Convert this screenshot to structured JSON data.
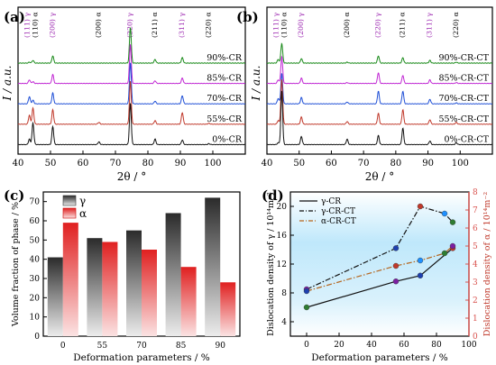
{
  "chart_data": [
    {
      "panel": "(a)",
      "type": "line",
      "xlabel": "2θ / °",
      "ylabel": "I / a.u.",
      "xlim": [
        40,
        110
      ],
      "xticks": [
        "40",
        "50",
        "60",
        "70",
        "80",
        "90",
        "100"
      ],
      "peaks": [
        {
          "label": "(111) γ",
          "x": 43.5,
          "color": "#9c27b0"
        },
        {
          "label": "(110) α",
          "x": 44.6,
          "color": "#000000"
        },
        {
          "label": "(200) γ",
          "x": 50.7,
          "color": "#9c27b0"
        },
        {
          "label": "(200) α",
          "x": 64.9,
          "color": "#000000"
        },
        {
          "label": "(220) γ",
          "x": 74.6,
          "color": "#9c27b0"
        },
        {
          "label": "(211) α",
          "x": 82.2,
          "color": "#000000"
        },
        {
          "label": "(311) γ",
          "x": 90.6,
          "color": "#9c27b0"
        },
        {
          "label": "(220) α",
          "x": 98.8,
          "color": "#000000"
        }
      ],
      "series": [
        {
          "name": "90%-CR",
          "color": "#1a8a1a"
        },
        {
          "name": "85%-CR",
          "color": "#c026d3"
        },
        {
          "name": "70%-CR",
          "color": "#1f4fd6"
        },
        {
          "name": "55%-CR",
          "color": "#c0392b"
        },
        {
          "name": "0%-CR",
          "color": "#111111"
        }
      ]
    },
    {
      "panel": "(b)",
      "type": "line",
      "xlabel": "2θ / °",
      "ylabel": "I / a.u.",
      "xlim": [
        40,
        110
      ],
      "xticks": [
        "40",
        "50",
        "60",
        "70",
        "80",
        "90",
        "100"
      ],
      "peaks": [
        {
          "label": "(111) γ",
          "x": 43.5,
          "color": "#9c27b0"
        },
        {
          "label": "(110) α",
          "x": 44.6,
          "color": "#000000"
        },
        {
          "label": "(200) γ",
          "x": 50.7,
          "color": "#9c27b0"
        },
        {
          "label": "(200) α",
          "x": 64.9,
          "color": "#000000"
        },
        {
          "label": "(220) γ",
          "x": 74.6,
          "color": "#9c27b0"
        },
        {
          "label": "(211) α",
          "x": 82.2,
          "color": "#000000"
        },
        {
          "label": "(311) γ",
          "x": 90.6,
          "color": "#9c27b0"
        },
        {
          "label": "(220) α",
          "x": 98.8,
          "color": "#000000"
        }
      ],
      "series": [
        {
          "name": "90%-CR-CT",
          "color": "#1a8a1a"
        },
        {
          "name": "85%-CR-CT",
          "color": "#c026d3"
        },
        {
          "name": "70%-CR-CT",
          "color": "#1f4fd6"
        },
        {
          "name": "55%-CR-CT",
          "color": "#c0392b"
        },
        {
          "name": "0%-CR-CT",
          "color": "#111111"
        }
      ]
    },
    {
      "panel": "(c)",
      "type": "bar",
      "categories": [
        "0",
        "55",
        "70",
        "85",
        "90"
      ],
      "xlabel": "Deformation parameters / %",
      "ylabel": "Volume fraction of phase / %",
      "ylim": [
        0,
        75
      ],
      "yticks": [
        "0",
        "10",
        "20",
        "30",
        "40",
        "50",
        "60",
        "70"
      ],
      "legend_position": "top-left",
      "series": [
        {
          "name": "γ",
          "values": [
            41,
            51,
            55,
            64,
            72
          ],
          "color": "#333333"
        },
        {
          "name": "α",
          "values": [
            59,
            49,
            45,
            36,
            28
          ],
          "color": "#e53935"
        }
      ]
    },
    {
      "panel": "(d)",
      "type": "line",
      "xlabel": "Deformation parameters / %",
      "ylabel": "Dislocation density of γ / 10¹⁴m⁻²",
      "y2label": "Dislocation density of α / 10¹⁴m⁻²",
      "xlim": [
        -10,
        100
      ],
      "ylim": [
        2,
        22
      ],
      "y2lim": [
        0,
        8
      ],
      "xticks": [
        "0",
        "20",
        "40",
        "60",
        "80",
        "100"
      ],
      "yticks": [
        "4",
        "8",
        "12",
        "16",
        "20"
      ],
      "y2ticks": [
        "0",
        "1",
        "2",
        "3",
        "4",
        "5",
        "6",
        "7",
        "8"
      ],
      "legend_position": "top-left",
      "series": [
        {
          "name": "γ-CR",
          "axis": "left",
          "x": [
            0,
            55,
            70,
            90
          ],
          "y": [
            6.0,
            9.6,
            10.4,
            14.2
          ],
          "color": "#111111",
          "style": "solid"
        },
        {
          "name": "γ-CR-CT",
          "axis": "left",
          "x": [
            0,
            55,
            70,
            85,
            90
          ],
          "y": [
            8.5,
            14.2,
            20.0,
            19.0,
            17.8
          ],
          "color": "#111111",
          "style": "dashdot"
        },
        {
          "name": "α-CR-CT",
          "axis": "right",
          "x": [
            0,
            55,
            70,
            85,
            90
          ],
          "y": [
            2.5,
            3.9,
            4.2,
            4.6,
            5.0
          ],
          "color": "#b5651d",
          "style": "dashdot"
        }
      ]
    }
  ]
}
